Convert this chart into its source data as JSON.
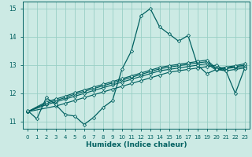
{
  "xlabel": "Humidex (Indice chaleur)",
  "xlim": [
    -0.5,
    23.5
  ],
  "ylim": [
    10.75,
    15.25
  ],
  "yticks": [
    11,
    12,
    13,
    14,
    15
  ],
  "xticks": [
    0,
    1,
    2,
    3,
    4,
    5,
    6,
    7,
    8,
    9,
    10,
    11,
    12,
    13,
    14,
    15,
    16,
    17,
    18,
    19,
    20,
    21,
    22,
    23
  ],
  "background_color": "#cceae4",
  "grid_color": "#99cfc5",
  "line_color": "#006060",
  "main_line": {
    "x": [
      0,
      1,
      2,
      3,
      4,
      5,
      6,
      7,
      8,
      9,
      10,
      11,
      12,
      13,
      14,
      15,
      16,
      17,
      18,
      19,
      20,
      21,
      22,
      23
    ],
    "y": [
      11.4,
      11.1,
      11.85,
      11.6,
      11.25,
      11.2,
      10.9,
      11.15,
      11.5,
      11.75,
      12.85,
      13.5,
      14.75,
      15.0,
      14.35,
      14.1,
      13.85,
      14.05,
      13.0,
      12.7,
      12.85,
      12.8,
      12.0,
      12.9
    ]
  },
  "trend_lines": [
    {
      "x": [
        0,
        3,
        4,
        5,
        6,
        7,
        8,
        9,
        10,
        11,
        12,
        13,
        14,
        15,
        16,
        17,
        18,
        19,
        20,
        21,
        22,
        23
      ],
      "y": [
        11.35,
        11.55,
        11.65,
        11.75,
        11.85,
        11.95,
        12.05,
        12.15,
        12.25,
        12.35,
        12.45,
        12.55,
        12.65,
        12.75,
        12.8,
        12.85,
        12.9,
        12.95,
        13.0,
        12.8,
        12.85,
        12.9
      ]
    },
    {
      "x": [
        0,
        2,
        3,
        4,
        5,
        6,
        7,
        8,
        9,
        10,
        11,
        12,
        13,
        14,
        15,
        16,
        17,
        18,
        19,
        20,
        21,
        22,
        23
      ],
      "y": [
        11.35,
        11.6,
        11.7,
        11.8,
        11.9,
        12.0,
        12.1,
        12.2,
        12.3,
        12.4,
        12.5,
        12.6,
        12.7,
        12.8,
        12.85,
        12.9,
        12.95,
        13.0,
        13.05,
        12.82,
        12.88,
        12.92,
        12.95
      ]
    },
    {
      "x": [
        0,
        2,
        3,
        4,
        5,
        6,
        7,
        8,
        9,
        10,
        11,
        12,
        13,
        14,
        15,
        16,
        17,
        18,
        19,
        20,
        21,
        22,
        23
      ],
      "y": [
        11.35,
        11.65,
        11.75,
        11.85,
        11.97,
        12.07,
        12.17,
        12.27,
        12.37,
        12.47,
        12.57,
        12.67,
        12.77,
        12.87,
        12.93,
        12.98,
        13.03,
        13.08,
        13.12,
        12.85,
        12.9,
        12.95,
        13.0
      ]
    },
    {
      "x": [
        0,
        2,
        3,
        4,
        5,
        6,
        7,
        8,
        9,
        10,
        11,
        12,
        13,
        14,
        15,
        16,
        17,
        18,
        19,
        20,
        21,
        22,
        23
      ],
      "y": [
        11.35,
        11.7,
        11.8,
        11.9,
        12.02,
        12.12,
        12.22,
        12.32,
        12.42,
        12.52,
        12.62,
        12.72,
        12.82,
        12.92,
        12.98,
        13.03,
        13.08,
        13.13,
        13.18,
        12.88,
        12.93,
        12.98,
        13.05
      ]
    }
  ],
  "marker": "D",
  "markersize": 2.2,
  "linewidth": 0.9,
  "trend_linewidth": 0.85
}
